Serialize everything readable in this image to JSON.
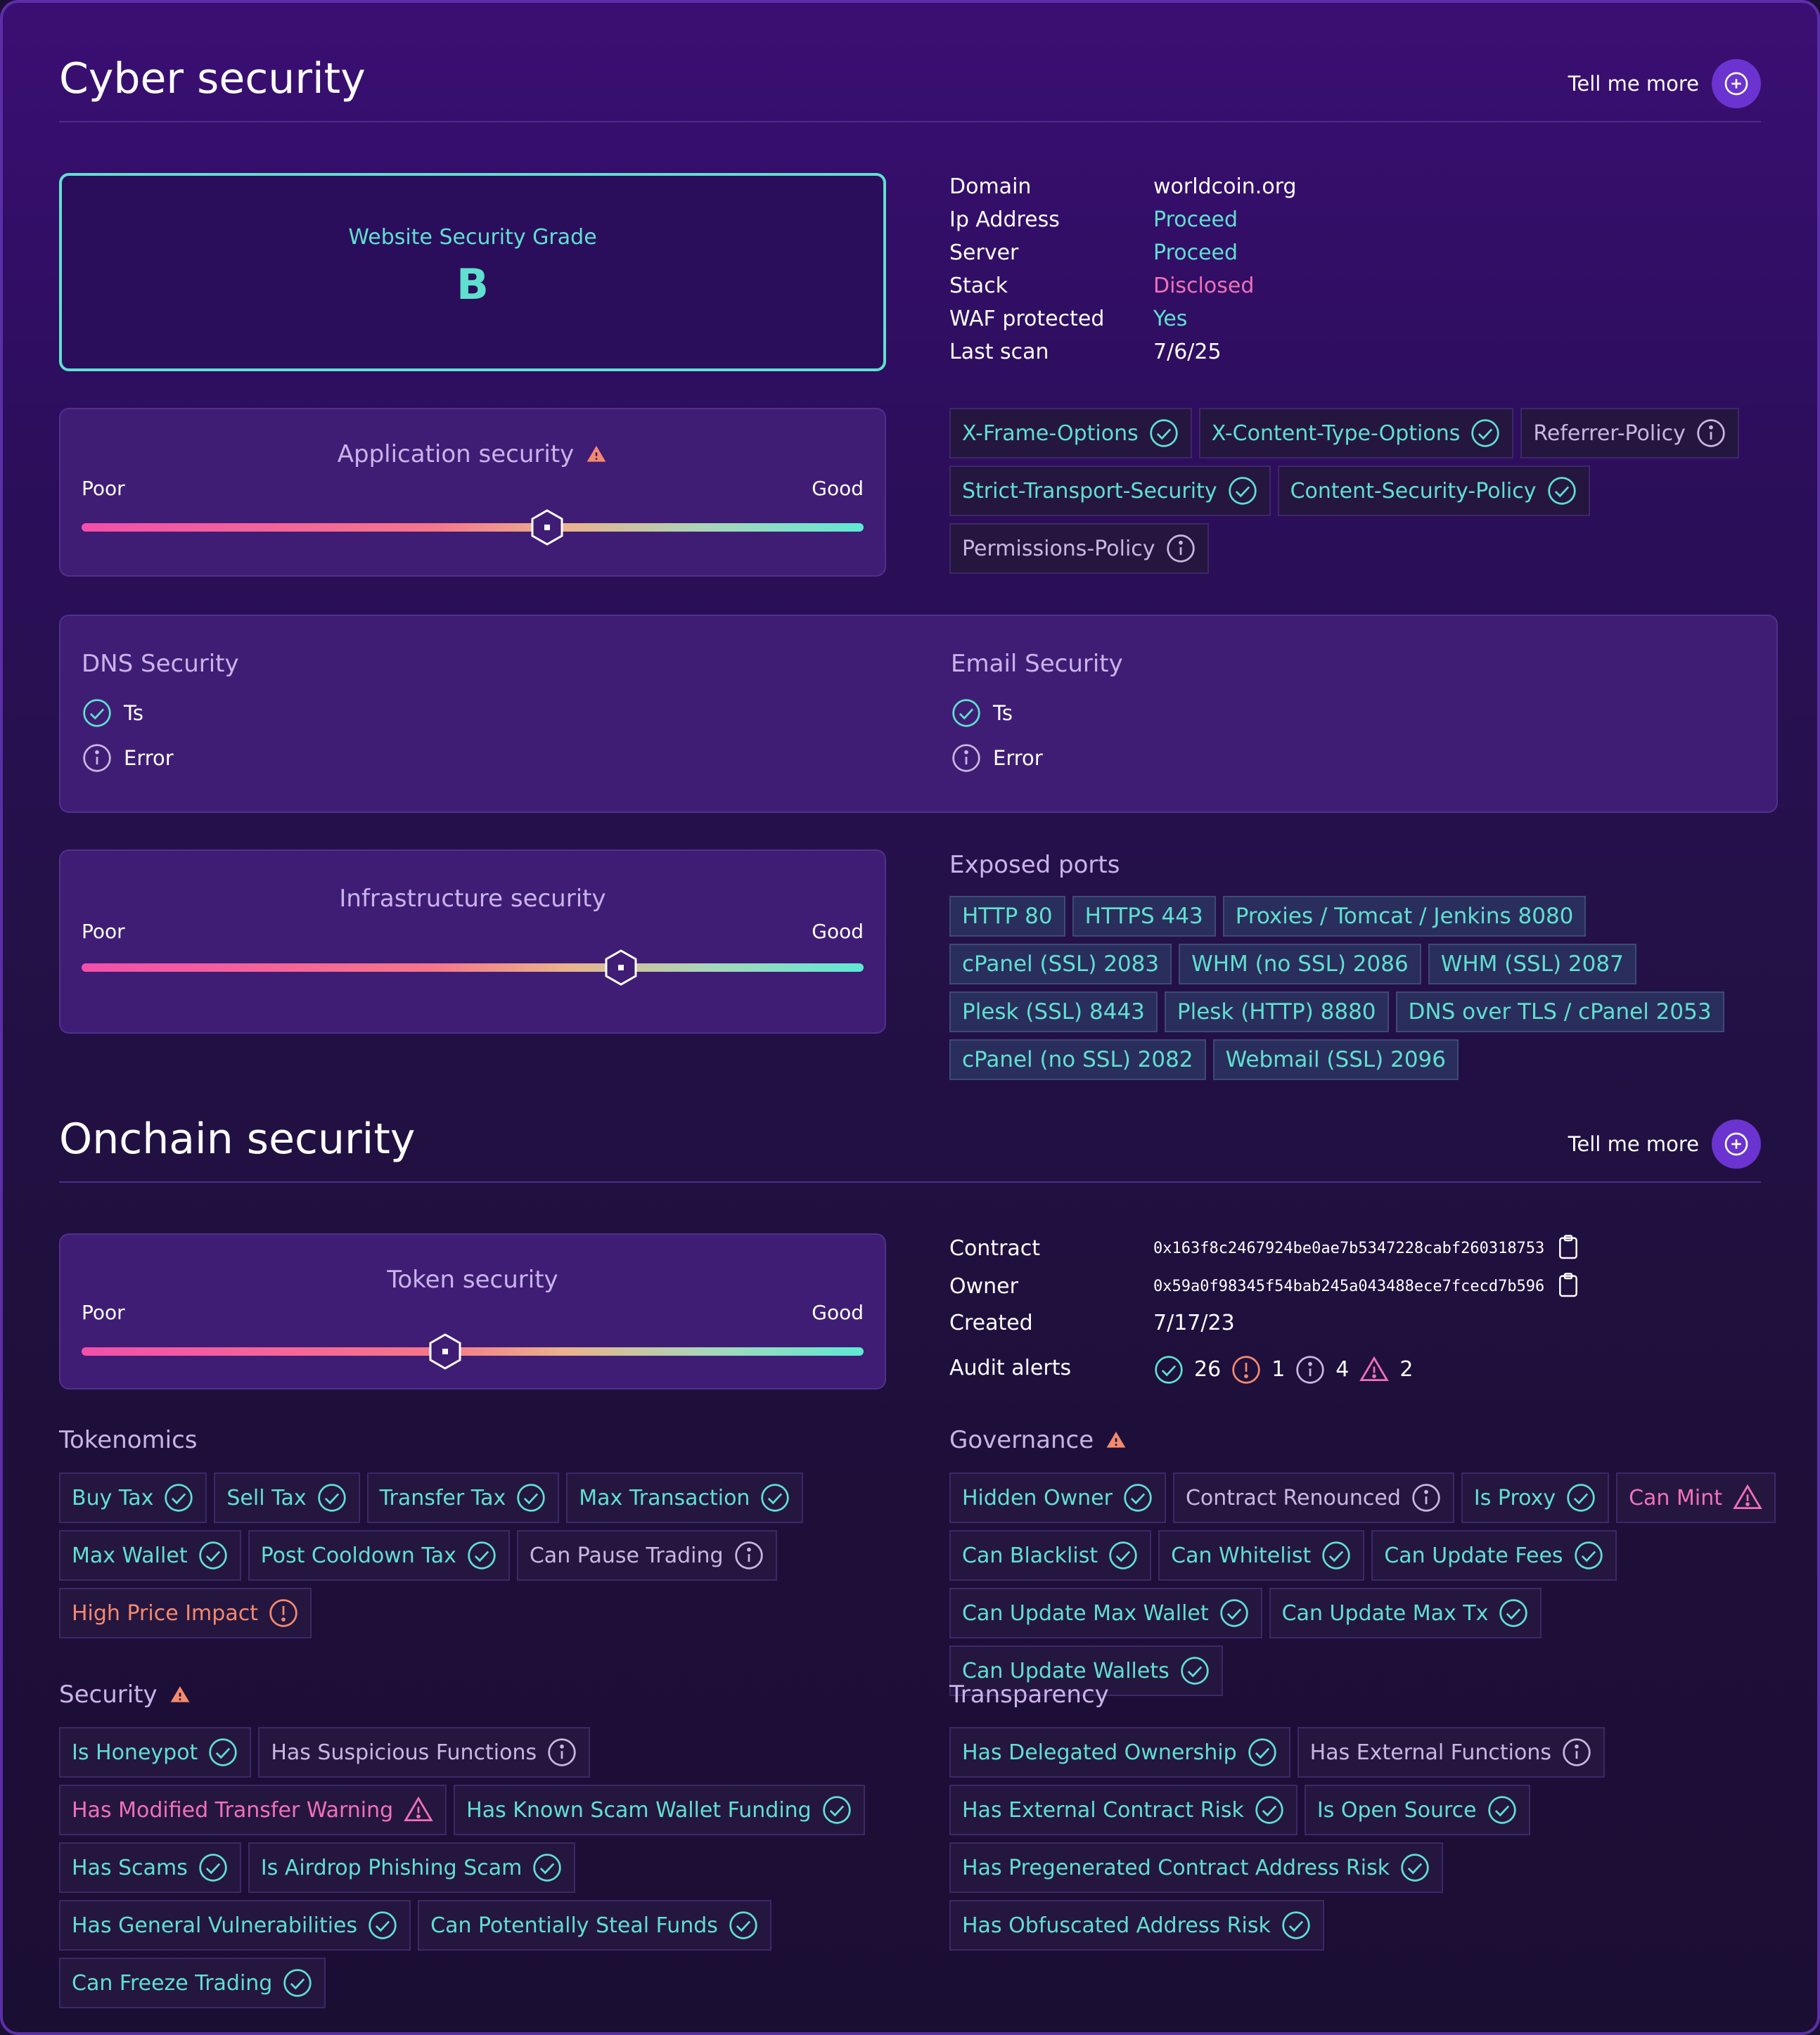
{
  "cyber": {
    "title": "Cyber security",
    "tell_more": "Tell me more",
    "grade": {
      "label": "Website Security Grade",
      "value": "B"
    },
    "info": [
      {
        "key": "Domain",
        "value": "worldcoin.org",
        "color": "#ffffff"
      },
      {
        "key": "Ip Address",
        "value": "Proceed",
        "color": "#5fe0cf"
      },
      {
        "key": "Server",
        "value": "Proceed",
        "color": "#5fe0cf"
      },
      {
        "key": "Stack",
        "value": "Disclosed",
        "color": "#f071b8"
      },
      {
        "key": "WAF protected",
        "value": "Yes",
        "color": "#5fe0cf"
      },
      {
        "key": "Last scan",
        "value": "7/6/25",
        "color": "#ffffff"
      }
    ],
    "app_security": {
      "title": "Application security",
      "poor": "Poor",
      "good": "Good",
      "level": 0.595
    },
    "headers": [
      {
        "label": "X-Frame-Options",
        "status": "ok"
      },
      {
        "label": "X-Content-Type-Options",
        "status": "ok"
      },
      {
        "label": "Referrer-Policy",
        "status": "info"
      },
      {
        "label": "Strict-Transport-Security",
        "status": "ok"
      },
      {
        "label": "Content-Security-Policy",
        "status": "ok"
      },
      {
        "label": "Permissions-Policy",
        "status": "info"
      }
    ],
    "dns": {
      "title": "DNS Security",
      "ok_label": "Ts",
      "err_label": "Error"
    },
    "email": {
      "title": "Email Security",
      "ok_label": "Ts",
      "err_label": "Error"
    },
    "infra_security": {
      "title": "Infrastructure security",
      "poor": "Poor",
      "good": "Good",
      "level": 0.69
    },
    "ports_title": "Exposed ports",
    "ports": [
      "HTTP 80",
      "HTTPS 443",
      "Proxies / Tomcat / Jenkins 8080",
      "cPanel (SSL) 2083",
      "WHM (no SSL) 2086",
      "WHM (SSL) 2087",
      "Plesk (SSL) 8443",
      "Plesk (HTTP) 8880",
      "DNS over TLS / cPanel 2053",
      "cPanel (no SSL) 2082",
      "Webmail (SSL) 2096"
    ]
  },
  "onchain": {
    "title": "Onchain security",
    "tell_more": "Tell me more",
    "token_security": {
      "title": "Token security",
      "poor": "Poor",
      "good": "Good",
      "level": 0.465
    },
    "contract_label": "Contract",
    "contract": "0x163f8c2467924be0ae7b5347228cabf260318753",
    "owner_label": "Owner",
    "owner": "0x59a0f98345f54bab245a043488ece7fcecd7b596",
    "created_label": "Created",
    "created": "7/17/23",
    "audit_label": "Audit alerts",
    "audit": {
      "ok": "26",
      "orange": "1",
      "info": "4",
      "warn": "2"
    },
    "tokenomics": {
      "title": "Tokenomics",
      "items": [
        {
          "label": "Buy Tax",
          "status": "ok"
        },
        {
          "label": "Sell Tax",
          "status": "ok"
        },
        {
          "label": "Transfer Tax",
          "status": "ok"
        },
        {
          "label": "Max Transaction",
          "status": "ok"
        },
        {
          "label": "Max Wallet",
          "status": "ok"
        },
        {
          "label": "Post Cooldown Tax",
          "status": "ok"
        },
        {
          "label": "Can Pause Trading",
          "status": "info"
        },
        {
          "label": "High Price Impact",
          "status": "orange"
        }
      ]
    },
    "governance": {
      "title": "Governance",
      "items": [
        {
          "label": "Hidden Owner",
          "status": "ok"
        },
        {
          "label": "Contract Renounced",
          "status": "info"
        },
        {
          "label": "Is Proxy",
          "status": "ok"
        },
        {
          "label": "Can Mint",
          "status": "warn"
        },
        {
          "label": "Can Blacklist",
          "status": "ok"
        },
        {
          "label": "Can Whitelist",
          "status": "ok"
        },
        {
          "label": "Can Update Fees",
          "status": "ok"
        },
        {
          "label": "Can Update Max Wallet",
          "status": "ok"
        },
        {
          "label": "Can Update Max Tx",
          "status": "ok"
        },
        {
          "label": "Can Update Wallets",
          "status": "ok"
        }
      ]
    },
    "security": {
      "title": "Security",
      "items": [
        {
          "label": "Is Honeypot",
          "status": "ok"
        },
        {
          "label": "Has Suspicious Functions",
          "status": "info"
        },
        {
          "label": "Has Modified Transfer Warning",
          "status": "warn"
        },
        {
          "label": "Has Known Scam Wallet Funding",
          "status": "ok"
        },
        {
          "label": "Has Scams",
          "status": "ok"
        },
        {
          "label": "Is Airdrop Phishing Scam",
          "status": "ok"
        },
        {
          "label": "Has General Vulnerabilities",
          "status": "ok"
        },
        {
          "label": "Can Potentially Steal Funds",
          "status": "ok"
        },
        {
          "label": "Can Freeze Trading",
          "status": "ok"
        }
      ]
    },
    "transparency": {
      "title": "Transparency",
      "items": [
        {
          "label": "Has Delegated Ownership",
          "status": "ok"
        },
        {
          "label": "Has External Functions",
          "status": "info"
        },
        {
          "label": "Has External Contract Risk",
          "status": "ok"
        },
        {
          "label": "Is Open Source",
          "status": "ok"
        },
        {
          "label": "Has Pregenerated Contract Address Risk",
          "status": "ok"
        },
        {
          "label": "Has Obfuscated Address Risk",
          "status": "ok"
        }
      ]
    }
  }
}
